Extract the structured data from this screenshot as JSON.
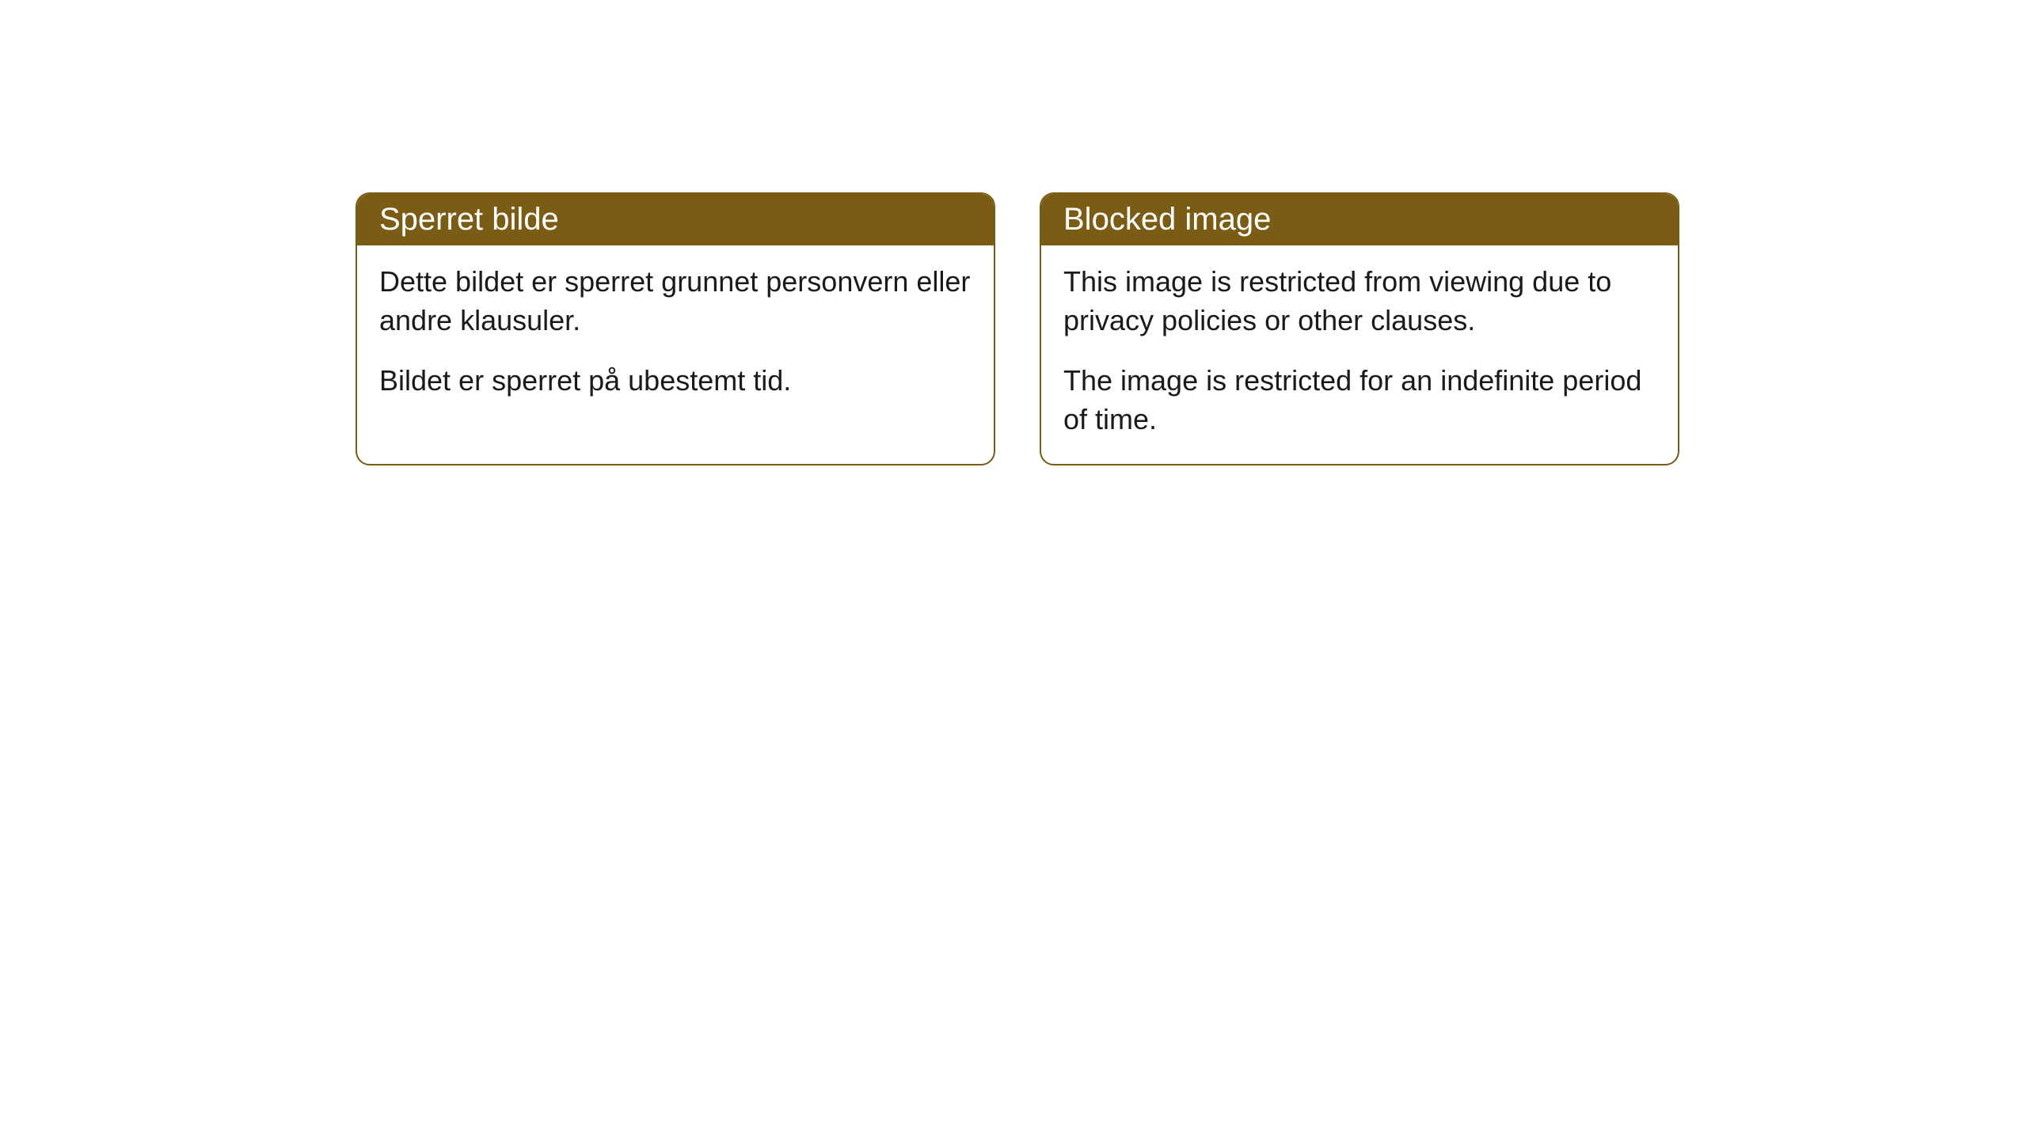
{
  "cards": [
    {
      "title": "Sperret bilde",
      "paragraph1": "Dette bildet er sperret grunnet personvern eller andre klausuler.",
      "paragraph2": "Bildet er sperret på ubestemt tid."
    },
    {
      "title": "Blocked image",
      "paragraph1": "This image is restricted from viewing due to privacy policies or other clauses.",
      "paragraph2": "The image is restricted for an indefinite period of time."
    }
  ],
  "styling": {
    "header_background": "#7a5c14",
    "header_text_color": "#ffffff",
    "border_color": "#7a5c14",
    "body_background": "#ffffff",
    "body_text_color": "#1a1a1a",
    "border_radius": 18,
    "header_fontsize": 40,
    "body_fontsize": 36
  }
}
